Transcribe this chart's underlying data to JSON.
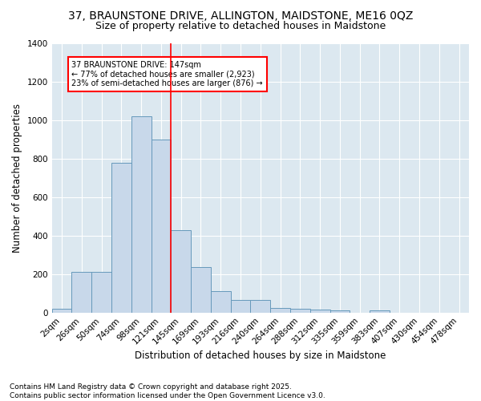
{
  "title1": "37, BRAUNSTONE DRIVE, ALLINGTON, MAIDSTONE, ME16 0QZ",
  "title2": "Size of property relative to detached houses in Maidstone",
  "xlabel": "Distribution of detached houses by size in Maidstone",
  "ylabel": "Number of detached properties",
  "footer1": "Contains HM Land Registry data © Crown copyright and database right 2025.",
  "footer2": "Contains public sector information licensed under the Open Government Licence v3.0.",
  "bar_labels": [
    "2sqm",
    "26sqm",
    "50sqm",
    "74sqm",
    "98sqm",
    "121sqm",
    "145sqm",
    "169sqm",
    "193sqm",
    "216sqm",
    "240sqm",
    "264sqm",
    "288sqm",
    "312sqm",
    "335sqm",
    "359sqm",
    "383sqm",
    "407sqm",
    "430sqm",
    "454sqm",
    "478sqm"
  ],
  "bar_values": [
    20,
    210,
    210,
    780,
    1020,
    900,
    430,
    235,
    110,
    65,
    65,
    25,
    20,
    15,
    10,
    0,
    10,
    0,
    0,
    0,
    0
  ],
  "bar_color": "#c8d8ea",
  "bar_edge_color": "#6699bb",
  "vline_color": "red",
  "vline_x_idx": 6,
  "annotation_text": "37 BRAUNSTONE DRIVE: 147sqm\n← 77% of detached houses are smaller (2,923)\n23% of semi-detached houses are larger (876) →",
  "annotation_box_color": "white",
  "annotation_box_edge": "red",
  "ylim": [
    0,
    1400
  ],
  "yticks": [
    0,
    200,
    400,
    600,
    800,
    1000,
    1200,
    1400
  ],
  "fig_bg_color": "#ffffff",
  "plot_bg_color": "#dce8f0",
  "title_fontsize": 10,
  "subtitle_fontsize": 9,
  "axis_label_fontsize": 8.5,
  "tick_fontsize": 7.5,
  "footer_fontsize": 6.5
}
